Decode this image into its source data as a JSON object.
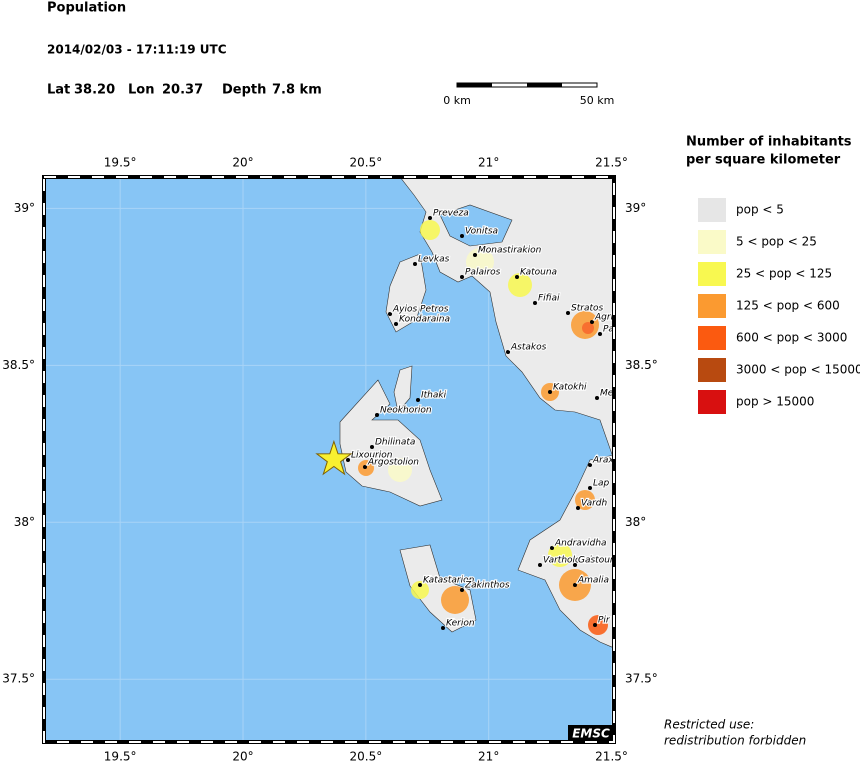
{
  "header": {
    "title": "Population",
    "datetime": "2014/02/03 - 17:11:19 UTC",
    "lat_label": "Lat",
    "lat": {
      "value": 38.2,
      "label": "38.20"
    },
    "lon_label": "Lon",
    "lon": {
      "value": 20.37,
      "label": "20.37"
    },
    "depth_label": "Depth",
    "depth": "7.8 km"
  },
  "scale_bar": {
    "start": "0 km",
    "end": "50 km"
  },
  "map": {
    "lonlim": [
      19.19,
      21.51
    ],
    "latlim": [
      37.3,
      39.1
    ],
    "grid": true,
    "lon_ticks": [
      {
        "value": 19.5,
        "label": "19.5°"
      },
      {
        "value": 20,
        "label": "20°"
      },
      {
        "value": 20.5,
        "label": "20.5°"
      },
      {
        "value": 21,
        "label": "21°"
      },
      {
        "value": 21.5,
        "label": "21.5°"
      }
    ],
    "lat_ticks": [
      {
        "value": 39,
        "label": "39°"
      },
      {
        "value": 38.5,
        "label": "38.5°"
      },
      {
        "value": 38,
        "label": "38°"
      },
      {
        "value": 37.5,
        "label": "37.5°"
      }
    ],
    "badge": "EMSC",
    "towns": [
      "Preveza",
      "Vonitsa",
      "Monastirakion",
      "Levkas",
      "Palairos",
      "Katouna",
      "Fifiai",
      "Stratos",
      "Agri",
      "Pa",
      "Ayios Petros",
      "Kondaraina",
      "Astakos",
      "Katokhi",
      "Me",
      "Ithaki",
      "Neokhorion",
      "Dhilinata",
      "Lixourion",
      "Argostolion",
      "Arax",
      "Lap",
      "Vardh",
      "Andravidha",
      "Vartholomion",
      "Gastouni",
      "Amalia",
      "Katastarion",
      "Zakinthos",
      "Kerion",
      "Pir"
    ]
  },
  "legend": {
    "title": [
      "Number of inhabitants",
      "per square kilometer"
    ],
    "items": [
      {
        "label": "pop < 5",
        "color": "#e6e6e6"
      },
      {
        "label": "5 < pop < 25",
        "color": "#fafac8"
      },
      {
        "label": "25 < pop < 125",
        "color": "#f8f850"
      },
      {
        "label": "125 < pop < 600",
        "color": "#fb9a30"
      },
      {
        "label": "600 < pop < 3000",
        "color": "#fb5a10"
      },
      {
        "label": "3000 < pop < 15000",
        "color": "#b84a10"
      },
      {
        "label": "pop > 15000",
        "color": "#d81010"
      }
    ]
  },
  "footnote": [
    "Restricted use:",
    "redistribution forbidden"
  ]
}
